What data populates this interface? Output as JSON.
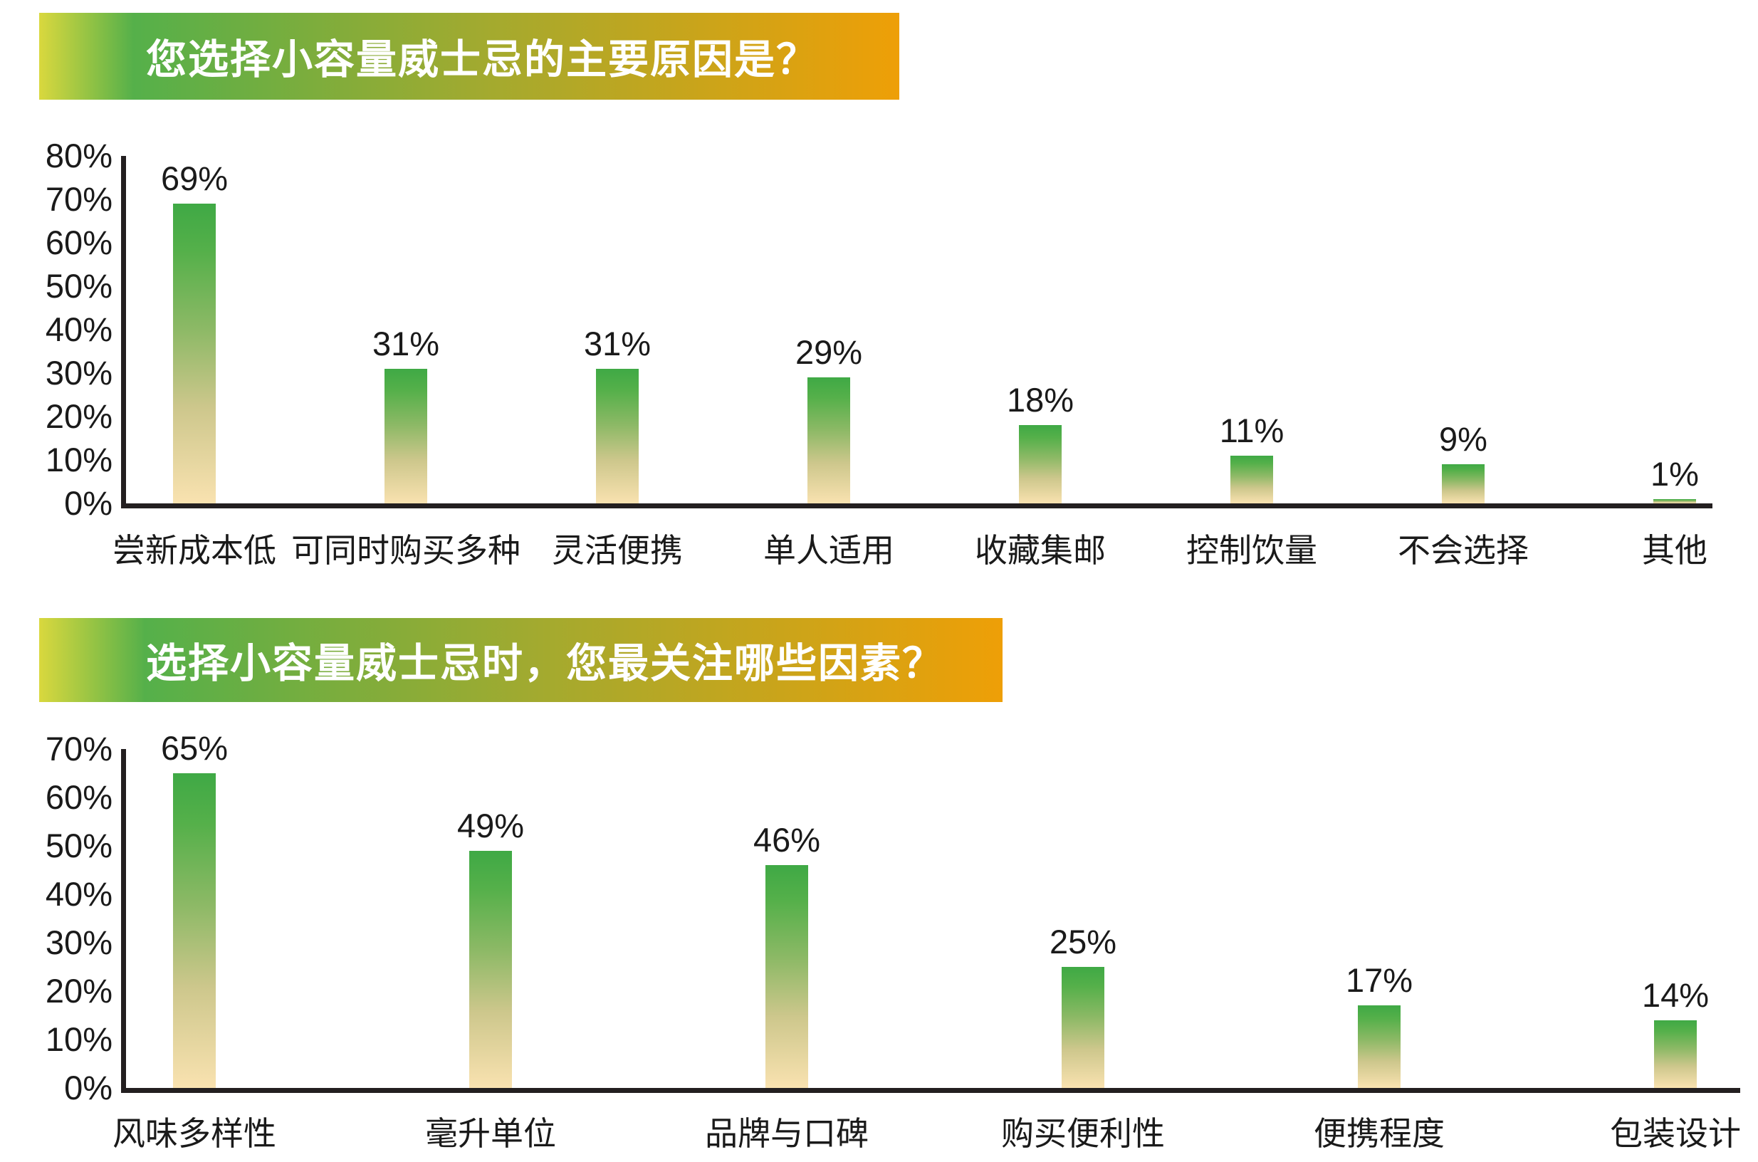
{
  "colors": {
    "banner_yellow": "#d9d83e",
    "banner_green": "#55b04a",
    "banner_orange": "#ee9f07",
    "bar_gradient_top": "#3fa945",
    "bar_gradient_bottom": "#f9e2b0",
    "axis_color": "#231f20",
    "text_color": "#1a1a1a",
    "title_text_color": "#ffffff"
  },
  "chart_data": [
    {
      "type": "bar",
      "title": "您选择小容量威士忌的主要原因是？",
      "categories": [
        "尝新成本低",
        "可同时购买多种",
        "灵活便携",
        "单人适用",
        "收藏集邮",
        "控制饮量",
        "不会选择",
        "其他"
      ],
      "values": [
        69,
        31,
        31,
        29,
        18,
        11,
        9,
        1
      ],
      "value_labels": [
        "69%",
        "31%",
        "31%",
        "29%",
        "18%",
        "11%",
        "9%",
        "1%"
      ],
      "ytick_labels": [
        "80%",
        "70%",
        "60%",
        "50%",
        "40%",
        "30%",
        "20%",
        "10%",
        "0%"
      ],
      "ylim": [
        0,
        80
      ],
      "ytick_step": 10,
      "xlabel": "",
      "ylabel": "",
      "grid": "off",
      "legend": "none",
      "bar_style": "vertical-gradient green-to-cream"
    },
    {
      "type": "bar",
      "title": "选择小容量威士忌时，您最关注哪些因素？",
      "categories": [
        "风味多样性",
        "毫升单位",
        "品牌与口碑",
        "购买便利性",
        "便携程度",
        "包装设计"
      ],
      "values": [
        65,
        49,
        46,
        25,
        17,
        14
      ],
      "value_labels": [
        "65%",
        "49%",
        "46%",
        "25%",
        "17%",
        "14%"
      ],
      "ytick_labels": [
        "70%",
        "60%",
        "50%",
        "40%",
        "30%",
        "20%",
        "10%",
        "0%"
      ],
      "ylim": [
        0,
        70
      ],
      "ytick_step": 10,
      "xlabel": "",
      "ylabel": "",
      "grid": "off",
      "legend": "none",
      "bar_style": "vertical-gradient green-to-cream"
    }
  ]
}
